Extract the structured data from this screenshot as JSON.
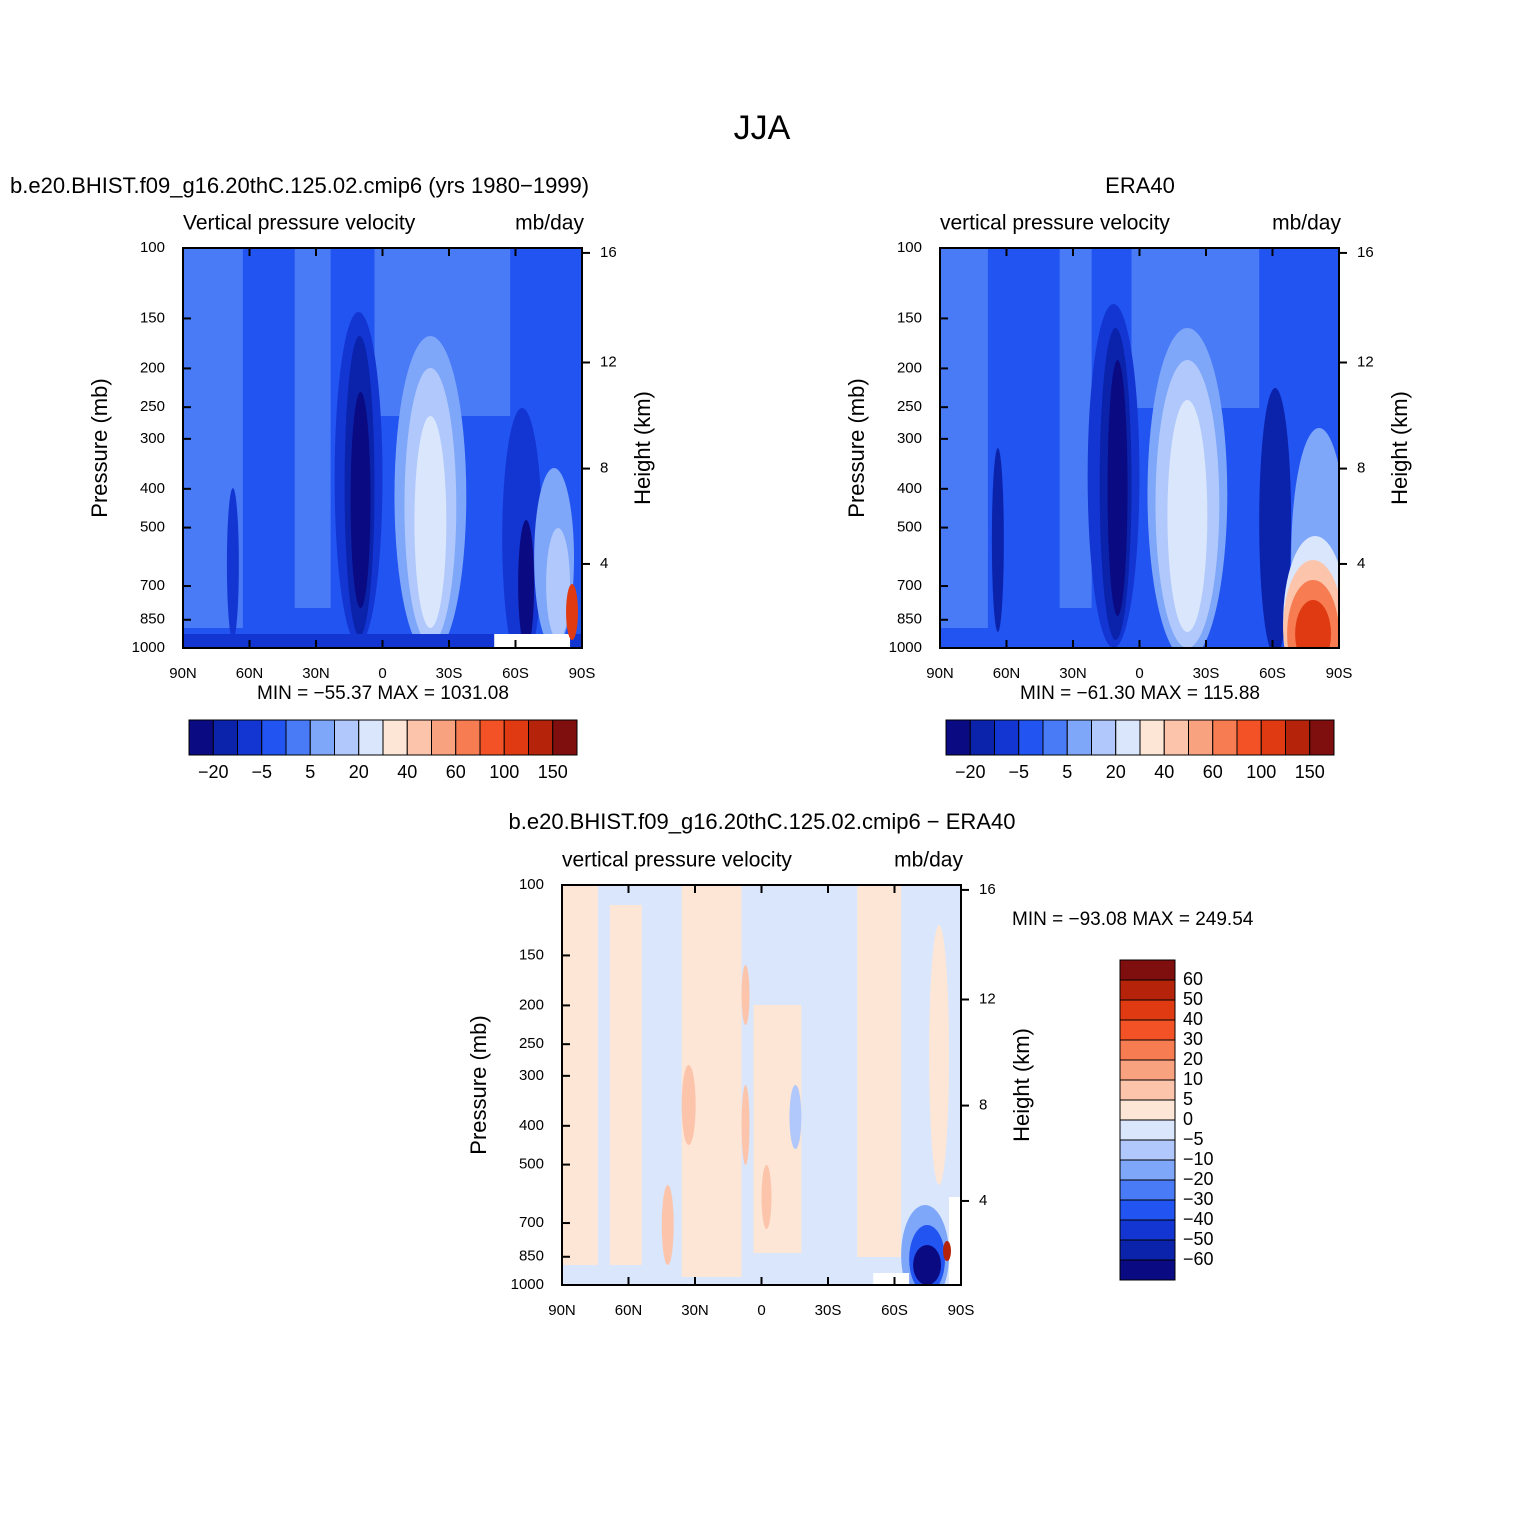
{
  "title": "JJA",
  "chart_data": [
    {
      "type": "contour",
      "title": "b.e20.BHIST.f09_g16.20thC.125.02.cmip6 (yrs 1980−1999)",
      "subtitle_left": "Vertical pressure velocity",
      "subtitle_right": "mb/day",
      "ylabel": "Pressure (mb)",
      "y2label": "Height (km)",
      "xlim": [
        90,
        -90
      ],
      "xticks": [
        {
          "value": 90,
          "label": "90N"
        },
        {
          "value": 60,
          "label": "60N"
        },
        {
          "value": 30,
          "label": "30N"
        },
        0,
        {
          "value": -30,
          "label": "30S"
        },
        {
          "value": -60,
          "label": "60S"
        },
        {
          "value": -90,
          "label": "90S"
        }
      ],
      "ylim": [
        1000,
        100
      ],
      "yscale": "log",
      "yticks": [
        100,
        150,
        200,
        250,
        300,
        400,
        500,
        700,
        850,
        1000
      ],
      "y2ticks": [
        4,
        8,
        12,
        16
      ],
      "stats": "MIN = −55.37   MAX = 1031.08",
      "colorbar": {
        "orientation": "horizontal",
        "levels": [
          {
            "value": -20,
            "label": "−20"
          },
          null,
          {
            "value": -5,
            "label": "−5"
          },
          null,
          5,
          null,
          20,
          null,
          40,
          null,
          60,
          null,
          100,
          null,
          150
        ],
        "colors": [
          "#0a0a82",
          "#0b22ab",
          "#1336d3",
          "#2254f2",
          "#4a7bf7",
          "#7ea6f9",
          "#b0c8fb",
          "#d9e6fc",
          "#fde6d6",
          "#fcc5ab",
          "#f9a27f",
          "#f77c52",
          "#f35226",
          "#e03a12",
          "#b5240a",
          "#7f0f0f"
        ]
      }
    },
    {
      "type": "contour",
      "title": "ERA40",
      "subtitle_left": "vertical pressure velocity",
      "subtitle_right": "mb/day",
      "ylabel": "Pressure (mb)",
      "y2label": "Height (km)",
      "xlim": [
        90,
        -90
      ],
      "xticks": [
        {
          "value": 90,
          "label": "90N"
        },
        {
          "value": 60,
          "label": "60N"
        },
        {
          "value": 30,
          "label": "30N"
        },
        0,
        {
          "value": -30,
          "label": "30S"
        },
        {
          "value": -60,
          "label": "60S"
        },
        {
          "value": -90,
          "label": "90S"
        }
      ],
      "ylim": [
        1000,
        100
      ],
      "yscale": "log",
      "yticks": [
        100,
        150,
        200,
        250,
        300,
        400,
        500,
        700,
        850,
        1000
      ],
      "y2ticks": [
        4,
        8,
        12,
        16
      ],
      "stats": "MIN = −61.30   MAX = 115.88",
      "colorbar": {
        "orientation": "horizontal",
        "levels": [
          {
            "value": -20,
            "label": "−20"
          },
          null,
          {
            "value": -5,
            "label": "−5"
          },
          null,
          5,
          null,
          20,
          null,
          40,
          null,
          60,
          null,
          100,
          null,
          150
        ],
        "colors": [
          "#0a0a82",
          "#0b22ab",
          "#1336d3",
          "#2254f2",
          "#4a7bf7",
          "#7ea6f9",
          "#b0c8fb",
          "#d9e6fc",
          "#fde6d6",
          "#fcc5ab",
          "#f9a27f",
          "#f77c52",
          "#f35226",
          "#e03a12",
          "#b5240a",
          "#7f0f0f"
        ]
      }
    },
    {
      "type": "contour",
      "title": "b.e20.BHIST.f09_g16.20thC.125.02.cmip6 − ERA40",
      "subtitle_left": "vertical pressure velocity",
      "subtitle_right": "mb/day",
      "ylabel": "Pressure (mb)",
      "y2label": "Height (km)",
      "xlim": [
        90,
        -90
      ],
      "xticks": [
        {
          "value": 90,
          "label": "90N"
        },
        {
          "value": 60,
          "label": "60N"
        },
        {
          "value": 30,
          "label": "30N"
        },
        0,
        {
          "value": -30,
          "label": "30S"
        },
        {
          "value": -60,
          "label": "60S"
        },
        {
          "value": -90,
          "label": "90S"
        }
      ],
      "ylim": [
        1000,
        100
      ],
      "yscale": "log",
      "yticks": [
        100,
        150,
        200,
        250,
        300,
        400,
        500,
        700,
        850,
        1000
      ],
      "y2ticks": [
        4,
        8,
        12,
        16
      ],
      "stats": "MIN = −93.08   MAX = 249.54",
      "colorbar": {
        "orientation": "vertical",
        "levels": [
          {
            "value": -60,
            "label": "−60"
          },
          {
            "value": -50,
            "label": "−50"
          },
          {
            "value": -40,
            "label": "−40"
          },
          {
            "value": -30,
            "label": "−30"
          },
          {
            "value": -20,
            "label": "−20"
          },
          {
            "value": -10,
            "label": "−10"
          },
          {
            "value": -5,
            "label": "−5"
          },
          0,
          5,
          10,
          20,
          30,
          40,
          50,
          60
        ],
        "colors": [
          "#0a0a82",
          "#0b22ab",
          "#1336d3",
          "#2254f2",
          "#4a7bf7",
          "#7ea6f9",
          "#b0c8fb",
          "#d9e6fc",
          "#fde6d6",
          "#fcc5ab",
          "#f9a27f",
          "#f77c52",
          "#f35226",
          "#e03a12",
          "#b5240a",
          "#7f0f0f"
        ]
      }
    }
  ]
}
